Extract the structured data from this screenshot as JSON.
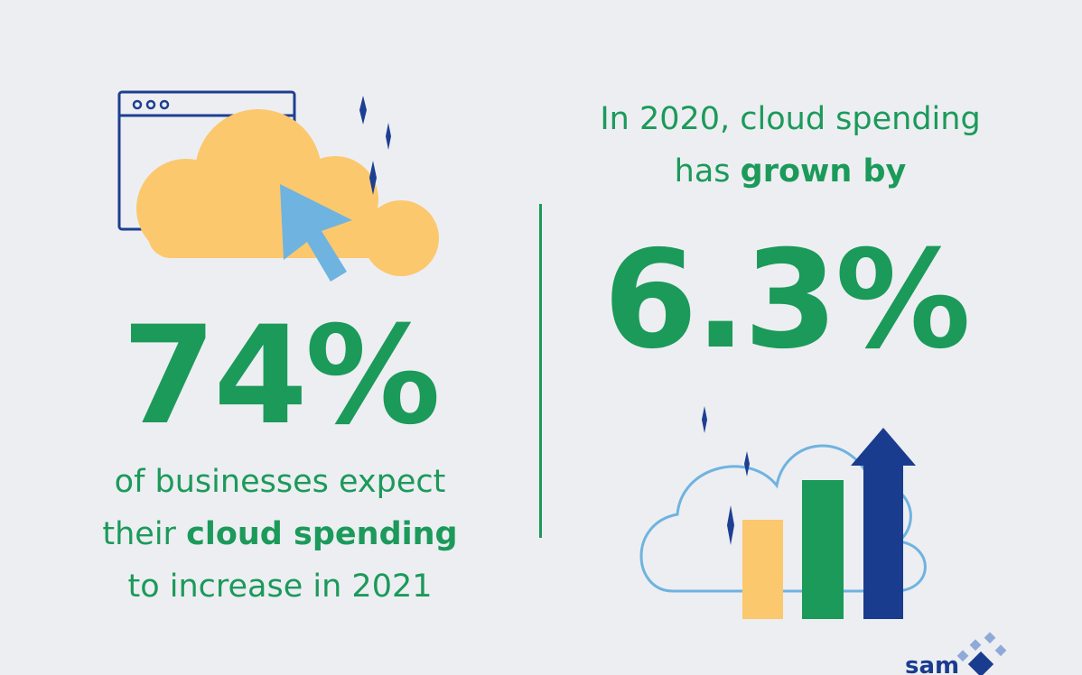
{
  "stat_left": {
    "value": "74%",
    "caption_line1": "of businesses expect",
    "caption_line2_pre": "their ",
    "caption_line2_bold": "cloud spending",
    "caption_line3": "to increase in 2021"
  },
  "stat_right": {
    "heading_line1": "In 2020, cloud spending",
    "heading_line2_pre": "has ",
    "heading_line2_bold": "grown by",
    "value": "6.3%"
  },
  "brand": {
    "logo_text": "sam"
  },
  "colors": {
    "background": "#edeef2",
    "green": "#1b9a5a",
    "navy": "#1d3f91",
    "cloud_yellow": "#fbc86e",
    "light_blue": "#6fb3e0",
    "dark_blue": "#1a3c8f"
  },
  "icons": [
    "browser-window-icon",
    "cloud-icon",
    "cursor-arrow-icon",
    "sparkle-icon",
    "bar-chart-icon",
    "up-arrow-icon",
    "brand-logo"
  ]
}
